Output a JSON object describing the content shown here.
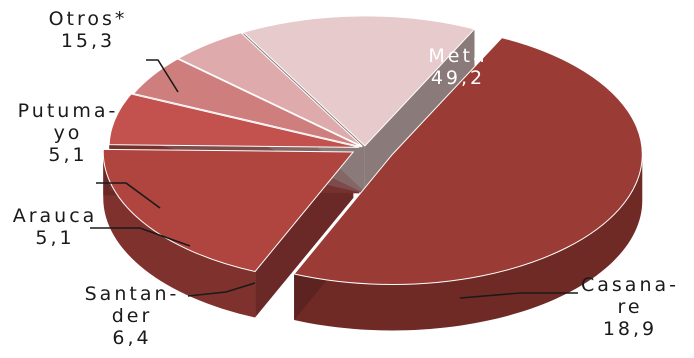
{
  "chart_data": {
    "type": "pie",
    "style": "3d-exploded",
    "slices": [
      {
        "label": "Meta",
        "label_lines": [
          "Meta"
        ],
        "value": 49.2,
        "value_text": "49,2",
        "color": "#9a3b35"
      },
      {
        "label": "Casanare",
        "label_lines": [
          "Casana-",
          "re"
        ],
        "value": 18.9,
        "value_text": "18,9",
        "color": "#b0453f"
      },
      {
        "label": "Santander",
        "label_lines": [
          "Santan-",
          "der"
        ],
        "value": 6.4,
        "value_text": "6,4",
        "color": "#c3514d"
      },
      {
        "label": "Arauca",
        "label_lines": [
          "Arauca"
        ],
        "value": 5.1,
        "value_text": "5,1",
        "color": "#cf7e7e"
      },
      {
        "label": "Putumayo",
        "label_lines": [
          "Putuma-",
          "yo"
        ],
        "value": 5.1,
        "value_text": "5,1",
        "color": "#deaaab"
      },
      {
        "label": "Otros*",
        "label_lines": [
          "Otros*"
        ],
        "value": 15.3,
        "value_text": "15,3",
        "color": "#e7cbcc"
      }
    ]
  }
}
